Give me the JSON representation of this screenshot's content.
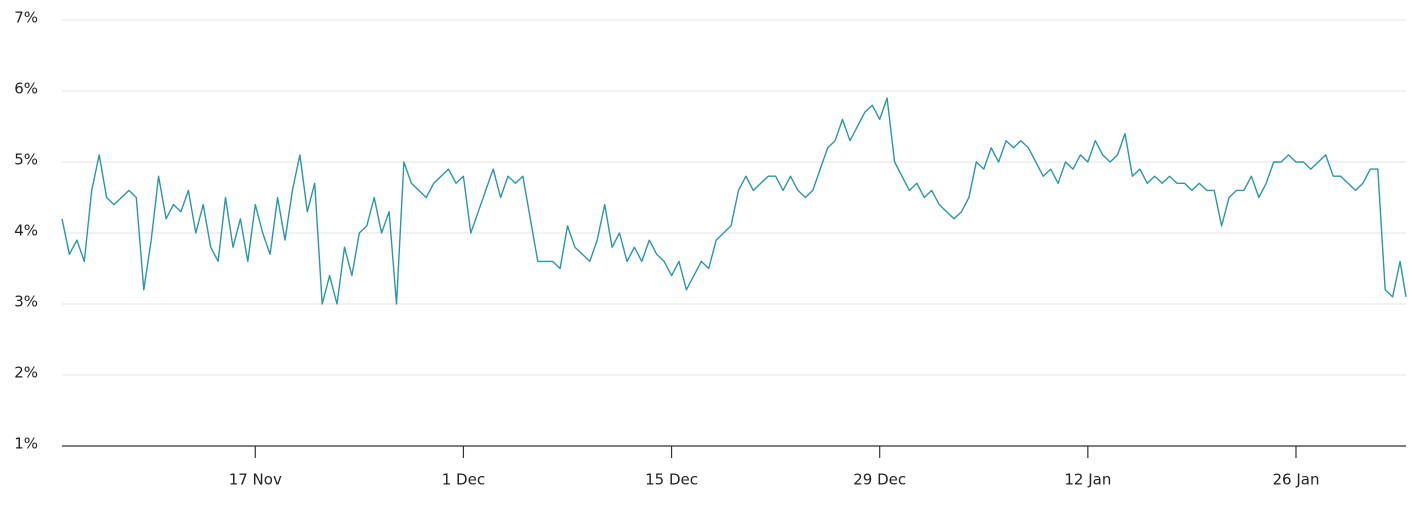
{
  "chart_data": {
    "type": "line",
    "x": [
      0,
      0.5,
      1,
      1.5,
      2,
      2.5,
      3,
      3.5,
      4,
      4.5,
      5,
      5.5,
      6,
      6.5,
      7,
      7.5,
      8,
      8.5,
      9,
      9.5,
      10,
      10.5,
      11,
      11.5,
      12,
      12.5,
      13,
      13.5,
      14,
      14.5,
      15,
      15.5,
      16,
      16.5,
      17,
      17.5,
      18,
      18.5,
      19,
      19.5,
      20,
      20.5,
      21,
      21.5,
      22,
      22.5,
      23,
      23.5,
      24,
      24.5,
      25,
      25.5,
      26,
      26.5,
      27,
      27.5,
      28,
      28.5,
      29,
      29.5,
      30,
      30.5,
      31,
      31.5,
      32,
      32.5,
      33,
      33.5,
      34,
      34.5,
      35,
      35.5,
      36,
      36.5,
      37,
      37.5,
      38,
      38.5,
      39,
      39.5,
      40,
      40.5,
      41,
      41.5,
      42,
      42.5,
      43,
      43.5,
      44,
      44.5,
      45,
      45.5,
      46,
      46.5,
      47,
      47.5,
      48,
      48.5,
      49,
      49.5,
      50,
      50.5,
      51,
      51.5,
      52,
      52.5,
      53,
      53.5,
      54,
      54.5,
      55,
      55.5,
      56,
      56.5,
      57,
      57.5,
      58,
      58.5,
      59,
      59.5,
      60,
      60.5,
      61,
      61.5,
      62,
      62.5,
      63,
      63.5,
      64,
      64.5,
      65,
      65.5,
      66,
      66.5,
      67,
      67.5,
      68,
      68.5,
      69,
      69.5,
      70,
      70.5,
      71,
      71.5,
      72,
      72.5,
      73,
      73.5,
      74,
      74.5,
      75,
      75.5,
      76,
      76.5,
      77,
      77.5,
      78,
      78.5,
      79,
      79.5,
      80,
      80.5,
      81,
      81.5,
      82,
      82.5,
      83,
      83.5,
      84,
      84.5,
      85,
      85.5,
      86,
      86.5,
      87,
      87.5,
      88,
      88.5,
      89,
      89.5,
      90,
      90.4
    ],
    "series": [
      {
        "color": "#2b96a6",
        "values": [
          4.2,
          3.7,
          3.9,
          3.6,
          4.6,
          5.1,
          4.5,
          4.4,
          4.5,
          4.6,
          4.5,
          3.2,
          3.9,
          4.8,
          4.2,
          4.4,
          4.3,
          4.6,
          4.0,
          4.4,
          3.8,
          3.6,
          4.5,
          3.8,
          4.2,
          3.6,
          4.4,
          4.0,
          3.7,
          4.5,
          3.9,
          4.6,
          5.1,
          4.3,
          4.7,
          3.0,
          3.4,
          3.0,
          3.8,
          3.4,
          4.0,
          4.1,
          4.5,
          4.0,
          4.3,
          3.0,
          5.0,
          4.7,
          4.6,
          4.5,
          4.7,
          4.8,
          4.9,
          4.7,
          4.8,
          4.0,
          4.3,
          4.6,
          4.9,
          4.5,
          4.8,
          4.7,
          4.8,
          4.2,
          3.6,
          3.6,
          3.6,
          3.5,
          4.1,
          3.8,
          3.7,
          3.6,
          3.9,
          4.4,
          3.8,
          4.0,
          3.6,
          3.8,
          3.6,
          3.9,
          3.7,
          3.6,
          3.4,
          3.6,
          3.2,
          3.4,
          3.6,
          3.5,
          3.9,
          4.0,
          4.1,
          4.6,
          4.8,
          4.6,
          4.7,
          4.8,
          4.8,
          4.6,
          4.8,
          4.6,
          4.5,
          4.6,
          4.9,
          5.2,
          5.3,
          5.6,
          5.3,
          5.5,
          5.7,
          5.8,
          5.6,
          5.9,
          5.0,
          4.8,
          4.6,
          4.7,
          4.5,
          4.6,
          4.4,
          4.3,
          4.2,
          4.3,
          4.5,
          5.0,
          4.9,
          5.2,
          5.0,
          5.3,
          5.2,
          5.3,
          5.2,
          5.0,
          4.8,
          4.9,
          4.7,
          5.0,
          4.9,
          5.1,
          5.0,
          5.3,
          5.1,
          5.0,
          5.1,
          5.4,
          4.8,
          4.9,
          4.7,
          4.8,
          4.7,
          4.8,
          4.7,
          4.7,
          4.6,
          4.7,
          4.6,
          4.6,
          4.1,
          4.5,
          4.6,
          4.6,
          4.8,
          4.5,
          4.7,
          5.0,
          5.0,
          5.1,
          5.0,
          5.0,
          4.9,
          5.0,
          5.1,
          4.8,
          4.8,
          4.7,
          4.6,
          4.7,
          4.9,
          4.9,
          3.2,
          3.1,
          3.6,
          3.1
        ]
      }
    ],
    "xlim": [
      0,
      90.4
    ],
    "xticks": [
      {
        "value": 13,
        "label": "17 Nov"
      },
      {
        "value": 27,
        "label": "1 Dec"
      },
      {
        "value": 41,
        "label": "15 Dec"
      },
      {
        "value": 55,
        "label": "29 Dec"
      },
      {
        "value": 69,
        "label": "12 Jan"
      },
      {
        "value": 83,
        "label": "26 Jan"
      }
    ],
    "ylim": [
      1,
      7
    ],
    "yticks": [
      {
        "value": 1,
        "label": "1%"
      },
      {
        "value": 2,
        "label": "2%"
      },
      {
        "value": 3,
        "label": "3%"
      },
      {
        "value": 4,
        "label": "4%"
      },
      {
        "value": 5,
        "label": "5%"
      },
      {
        "value": 6,
        "label": "6%"
      },
      {
        "value": 7,
        "label": "7%"
      }
    ],
    "grid": true
  }
}
